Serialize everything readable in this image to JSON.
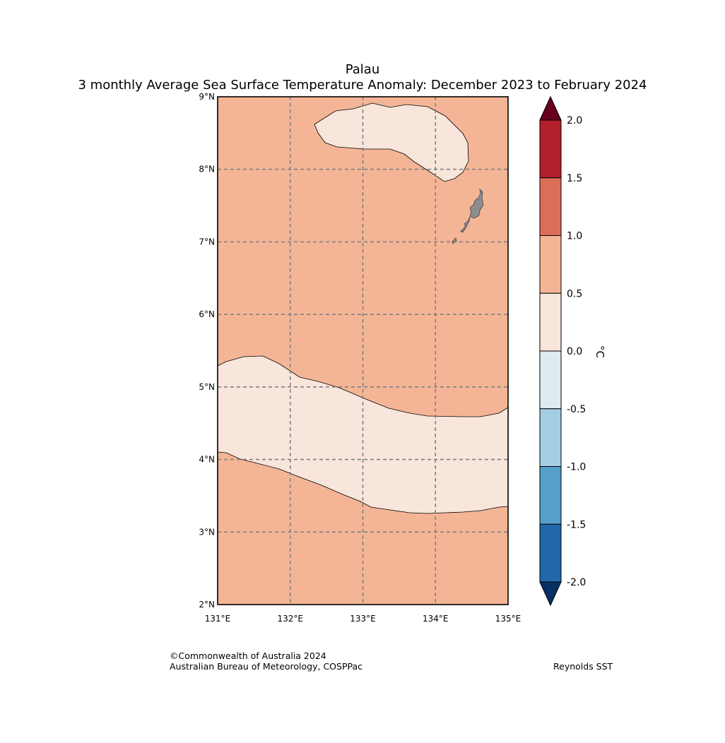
{
  "titles": {
    "line1": "Palau",
    "line2": "3 monthly Average Sea Surface Temperature Anomaly: December 2023 to February 2024"
  },
  "map": {
    "region": "Palau",
    "lon_range": [
      131,
      135
    ],
    "lat_range": [
      2,
      9
    ],
    "lon_ticks": [
      "131°E",
      "132°E",
      "133°E",
      "134°E",
      "135°E"
    ],
    "lat_ticks": [
      "2°N",
      "3°N",
      "4°N",
      "5°N",
      "6°N",
      "7°N",
      "8°N",
      "9°N"
    ],
    "background_class": "0.5 to 1.0",
    "background_color": "#f4b596",
    "anomaly_band_color": "#f8e5db",
    "land_color": "#8c8c8c",
    "gridline_color": "#808080"
  },
  "colorbar": {
    "unit_label": "°C",
    "ticks": [
      "2.0",
      "1.5",
      "1.0",
      "0.5",
      "0.0",
      "-0.5",
      "-1.0",
      "-1.5",
      "-2.0"
    ],
    "colors_top_to_bottom": [
      "#b2202c",
      "#dc6e58",
      "#f4b596",
      "#f8e5db",
      "#e0ebf1",
      "#a6cee3",
      "#569fc9",
      "#2167ac"
    ],
    "over_color": "#67001f",
    "under_color": "#053061"
  },
  "footer": {
    "copyright": "©Commonwealth of Australia 2024",
    "agency": "Australian Bureau of Meteorology, COSPPac",
    "source": "Reynolds SST"
  }
}
